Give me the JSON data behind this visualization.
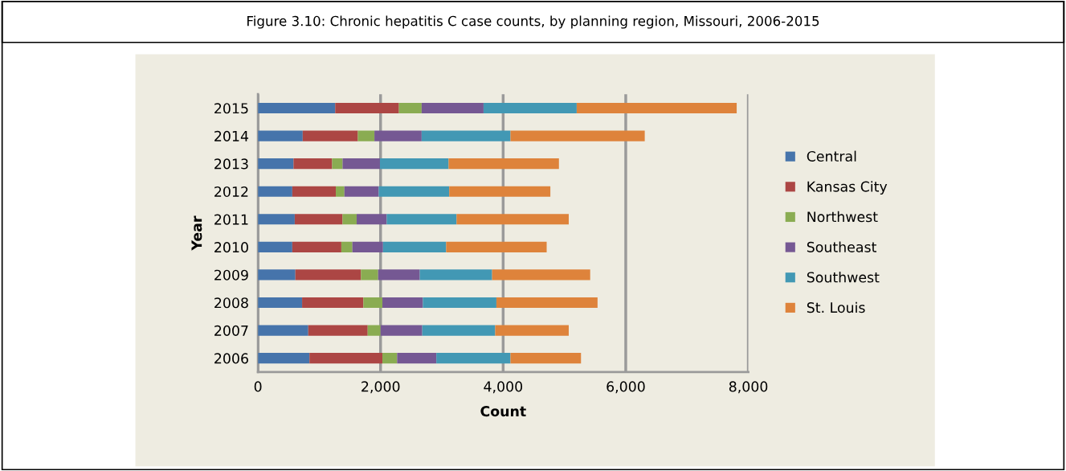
{
  "chart_data": {
    "type": "bar",
    "orientation": "horizontal",
    "stacked": true,
    "title": "Figure 3.10: Chronic hepatitis C case counts, by planning region, Missouri, 2006-2015",
    "xlabel": "Count",
    "ylabel": "Year",
    "categories": [
      "2015",
      "2014",
      "2013",
      "2012",
      "2011",
      "2010",
      "2009",
      "2008",
      "2007",
      "2006"
    ],
    "series": [
      {
        "name": "Central",
        "color": "#4674ab",
        "values": [
          1260,
          730,
          580,
          560,
          600,
          560,
          610,
          720,
          820,
          840
        ]
      },
      {
        "name": "Kansas City",
        "color": "#ac4644",
        "values": [
          1040,
          900,
          630,
          710,
          780,
          800,
          1070,
          1000,
          970,
          1190
        ]
      },
      {
        "name": "Northwest",
        "color": "#8aac52",
        "values": [
          370,
          270,
          170,
          140,
          230,
          180,
          280,
          310,
          210,
          240
        ]
      },
      {
        "name": "Southeast",
        "color": "#755893",
        "values": [
          1010,
          770,
          610,
          560,
          490,
          500,
          680,
          660,
          680,
          640
        ]
      },
      {
        "name": "Southwest",
        "color": "#4298b4",
        "values": [
          1520,
          1450,
          1120,
          1150,
          1140,
          1030,
          1180,
          1200,
          1190,
          1210
        ]
      },
      {
        "name": "St. Louis",
        "color": "#de833b",
        "values": [
          2610,
          2190,
          1800,
          1650,
          1830,
          1640,
          1600,
          1650,
          1200,
          1150
        ]
      }
    ],
    "xlim": [
      0,
      8000
    ],
    "xticks": [
      0,
      {
        "value": 2000,
        "label": "2,000"
      },
      {
        "value": 4000,
        "label": "4,000"
      },
      {
        "value": 6000,
        "label": "6,000"
      },
      {
        "value": 8000,
        "label": "8,000"
      }
    ],
    "grid": "x",
    "legend": "right"
  }
}
